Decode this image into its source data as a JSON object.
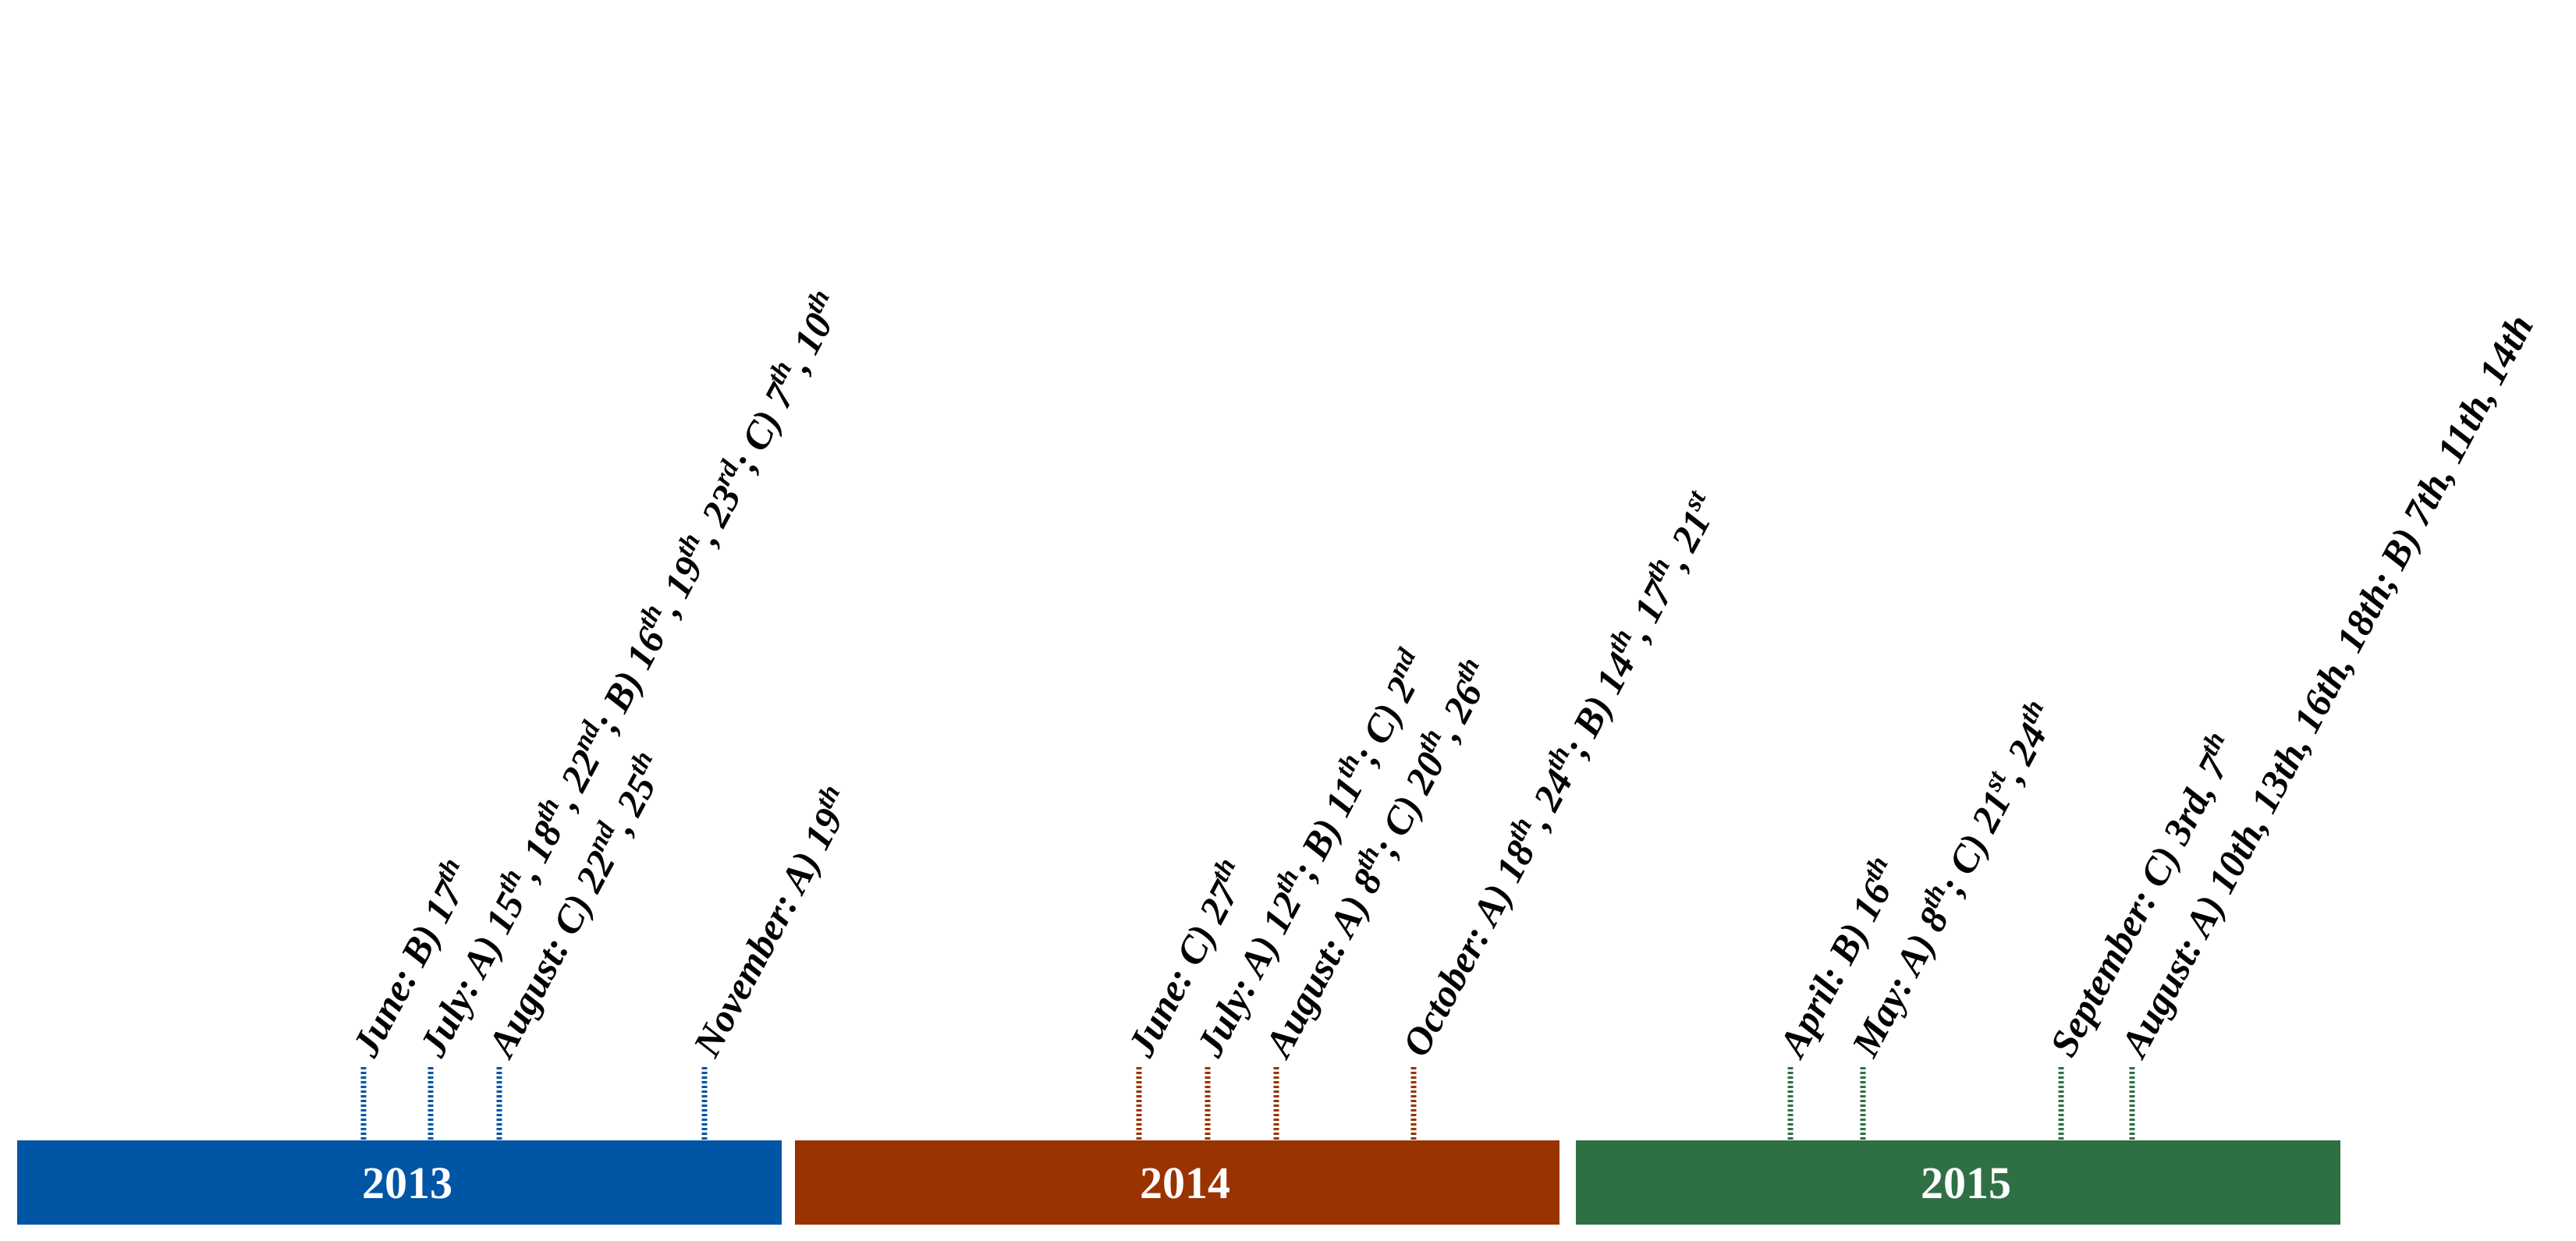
{
  "years": [
    {
      "label": "2013",
      "color": "#0055a5",
      "events": [
        {
          "parts": [
            [
              "June: B) 17",
              ""
            ],
            [
              "th",
              "sup"
            ]
          ]
        },
        {
          "parts": [
            [
              "July: A) 15",
              ""
            ],
            [
              "th",
              "sup"
            ],
            [
              ", 18",
              ""
            ],
            [
              "th",
              "sup"
            ],
            [
              ", 22",
              ""
            ],
            [
              "nd",
              "sup"
            ],
            [
              "; B) 16",
              ""
            ],
            [
              "th",
              "sup"
            ],
            [
              ", 19",
              ""
            ],
            [
              "th",
              "sup"
            ],
            [
              ", 23",
              ""
            ],
            [
              "rd",
              "sup"
            ],
            [
              "; C) 7",
              ""
            ],
            [
              "th",
              "sup"
            ],
            [
              ", 10",
              ""
            ],
            [
              "th",
              "sup"
            ]
          ]
        },
        {
          "parts": [
            [
              "August: C) 22",
              ""
            ],
            [
              "nd",
              "sup"
            ],
            [
              ", 25",
              ""
            ],
            [
              "th",
              "sup"
            ]
          ]
        },
        {
          "parts": [
            [
              "November: A) 19",
              ""
            ],
            [
              "th",
              "sup"
            ]
          ]
        }
      ]
    },
    {
      "label": "2014",
      "color": "#993300",
      "events": [
        {
          "parts": [
            [
              "June: C) 27",
              ""
            ],
            [
              "th",
              "sup"
            ]
          ]
        },
        {
          "parts": [
            [
              "July: A) 12",
              ""
            ],
            [
              "th",
              "sup"
            ],
            [
              "; B) 11",
              ""
            ],
            [
              "th",
              "sup"
            ],
            [
              "; C) 2",
              ""
            ],
            [
              "nd",
              "sup"
            ]
          ]
        },
        {
          "parts": [
            [
              "August: A) 8",
              ""
            ],
            [
              "th",
              "sup"
            ],
            [
              "; C) 20",
              ""
            ],
            [
              "th",
              "sup"
            ],
            [
              ", 26",
              ""
            ],
            [
              "th",
              "sup"
            ]
          ]
        },
        {
          "parts": [
            [
              "October: A) 18",
              ""
            ],
            [
              "th",
              "sup"
            ],
            [
              ", 24",
              ""
            ],
            [
              "th",
              "sup"
            ],
            [
              "; B) 14",
              ""
            ],
            [
              "th",
              "sup"
            ],
            [
              ", 17",
              ""
            ],
            [
              "th",
              "sup"
            ],
            [
              ", 21",
              ""
            ],
            [
              "st",
              "sup"
            ]
          ]
        }
      ]
    },
    {
      "label": "2015",
      "color": "#2e7044",
      "events": [
        {
          "parts": [
            [
              "April: B) 16",
              ""
            ],
            [
              "th",
              "sup"
            ]
          ]
        },
        {
          "parts": [
            [
              "May: A) 8",
              ""
            ],
            [
              "th",
              "sup"
            ],
            [
              "; C) 21",
              ""
            ],
            [
              "st",
              "sup"
            ],
            [
              ", 24",
              ""
            ],
            [
              "th",
              "sup"
            ]
          ]
        },
        {
          "parts": [
            [
              "September: C) 3rd, 7",
              ""
            ],
            [
              "th",
              "sup"
            ]
          ]
        },
        {
          "parts": [
            [
              "August: A) 10th, 13th, 16th, 18th; B) 7th, 11th, 14th",
              ""
            ]
          ]
        }
      ]
    }
  ]
}
